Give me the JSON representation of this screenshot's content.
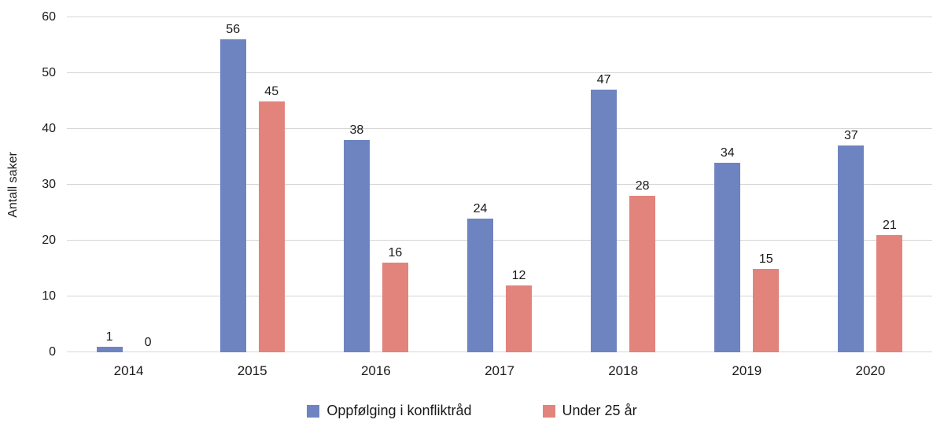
{
  "chart_data": {
    "type": "bar",
    "categories": [
      "2014",
      "2015",
      "2016",
      "2017",
      "2018",
      "2019",
      "2020"
    ],
    "series": [
      {
        "name": "Oppfølging i konfliktråd",
        "color": "#6e84c0",
        "values": [
          1,
          56,
          38,
          24,
          47,
          34,
          37
        ]
      },
      {
        "name": "Under 25 år",
        "color": "#e2837c",
        "values": [
          0,
          45,
          16,
          12,
          28,
          15,
          21
        ]
      }
    ],
    "title": "",
    "xlabel": "",
    "ylabel": "Antall saker",
    "ylim": [
      0,
      60
    ],
    "yticks": [
      0,
      10,
      20,
      30,
      40,
      50,
      60
    ],
    "grid": true,
    "legend_position": "bottom"
  }
}
